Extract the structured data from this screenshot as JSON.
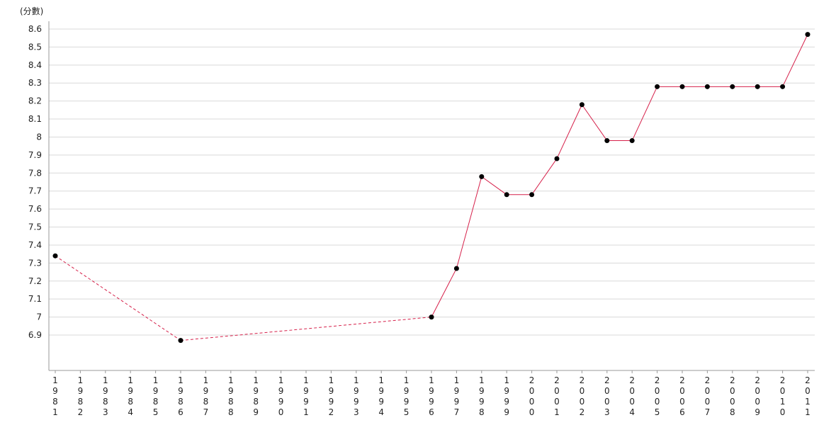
{
  "chart_data": {
    "type": "line",
    "ylabel": "(分數)",
    "ylim": [
      6.7,
      8.64
    ],
    "yticks": [
      "6.9",
      "7",
      "7.1",
      "7.2",
      "7.3",
      "7.4",
      "7.5",
      "7.6",
      "7.7",
      "7.8",
      "7.9",
      "8",
      "8.1",
      "8.2",
      "8.3",
      "8.4",
      "8.5",
      "8.6"
    ],
    "ytick_values": [
      6.9,
      7.0,
      7.1,
      7.2,
      7.3,
      7.4,
      7.5,
      7.6,
      7.7,
      7.8,
      7.9,
      8.0,
      8.1,
      8.2,
      8.3,
      8.4,
      8.5,
      8.6
    ],
    "categories": [
      "1981",
      "1982",
      "1983",
      "1984",
      "1985",
      "1986",
      "1987",
      "1988",
      "1989",
      "1990",
      "1991",
      "1992",
      "1993",
      "1994",
      "1995",
      "1996",
      "1997",
      "1998",
      "1999",
      "2000",
      "2001",
      "2002",
      "2003",
      "2004",
      "2005",
      "2006",
      "2007",
      "2008",
      "2009",
      "2010",
      "2011"
    ],
    "grid": true,
    "series": [
      {
        "line_color": "#d6204a",
        "marker_color": "#000000",
        "points": [
          {
            "x": "1981",
            "y": 7.34
          },
          {
            "x": "1986",
            "y": 6.87
          },
          {
            "x": "1996",
            "y": 7.0
          },
          {
            "x": "1997",
            "y": 7.27
          },
          {
            "x": "1998",
            "y": 7.78
          },
          {
            "x": "1999",
            "y": 7.68
          },
          {
            "x": "2000",
            "y": 7.68
          },
          {
            "x": "2001",
            "y": 7.88
          },
          {
            "x": "2002",
            "y": 8.18
          },
          {
            "x": "2003",
            "y": 7.98
          },
          {
            "x": "2004",
            "y": 7.98
          },
          {
            "x": "2005",
            "y": 8.28
          },
          {
            "x": "2006",
            "y": 8.28
          },
          {
            "x": "2007",
            "y": 8.28
          },
          {
            "x": "2008",
            "y": 8.28
          },
          {
            "x": "2009",
            "y": 8.28
          },
          {
            "x": "2010",
            "y": 8.28
          },
          {
            "x": "2011",
            "y": 8.57
          }
        ]
      }
    ]
  }
}
